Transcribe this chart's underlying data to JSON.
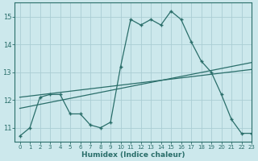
{
  "xlabel": "Humidex (Indice chaleur)",
  "background_color": "#cce8ec",
  "grid_color": "#aacdd4",
  "line_color": "#2a6e6a",
  "xlim": [
    -0.5,
    23
  ],
  "ylim": [
    10.5,
    15.5
  ],
  "yticks": [
    11,
    12,
    13,
    14,
    15
  ],
  "xticks": [
    0,
    1,
    2,
    3,
    4,
    5,
    6,
    7,
    8,
    9,
    10,
    11,
    12,
    13,
    14,
    15,
    16,
    17,
    18,
    19,
    20,
    21,
    22,
    23
  ],
  "series1_x": [
    0,
    1,
    2,
    3,
    4,
    5,
    6,
    7,
    8,
    9,
    10,
    11,
    12,
    13,
    14,
    15,
    16,
    17,
    18,
    19,
    20,
    21,
    22,
    23
  ],
  "series1_y": [
    10.7,
    11.0,
    12.1,
    12.2,
    12.2,
    11.5,
    11.5,
    11.1,
    11.0,
    11.2,
    13.2,
    14.9,
    14.7,
    14.9,
    14.7,
    15.2,
    14.9,
    14.1,
    13.4,
    13.0,
    12.2,
    11.3,
    10.8,
    10.8
  ],
  "series2_x": [
    0,
    23
  ],
  "series2_y": [
    11.7,
    13.35
  ],
  "series3_x": [
    0,
    23
  ],
  "series3_y": [
    12.1,
    13.1
  ]
}
